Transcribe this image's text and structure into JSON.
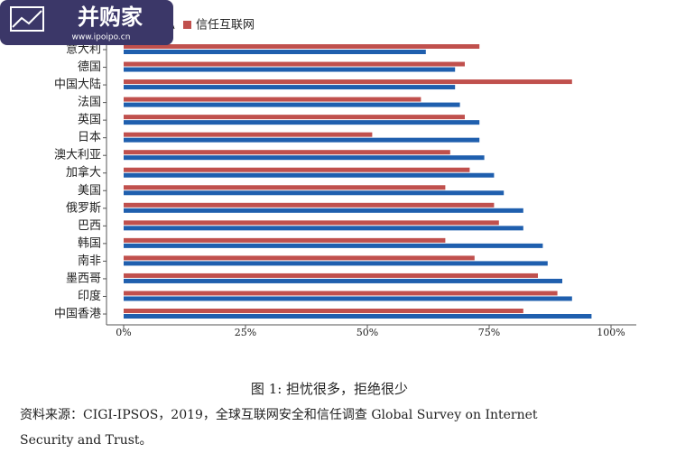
{
  "watermark": {
    "title": "并购家",
    "url": "www.ipoipo.cn"
  },
  "chart_data": {
    "type": "hbar",
    "categories": [
      "意大利",
      "德国",
      "中国大陆",
      "法国",
      "英国",
      "日本",
      "澳大利亚",
      "加拿大",
      "美国",
      "俄罗斯",
      "巴西",
      "韩国",
      "南非",
      "墨西哥",
      "印度",
      "中国香港"
    ],
    "series": [
      {
        "name": "担心隐私",
        "color": "#1f5fae",
        "values": [
          62,
          68,
          68,
          69,
          73,
          73,
          74,
          76,
          78,
          82,
          82,
          86,
          87,
          90,
          92,
          96
        ]
      },
      {
        "name": "信任互联网",
        "color": "#c0504d",
        "values": [
          73,
          70,
          92,
          61,
          70,
          51,
          67,
          71,
          66,
          76,
          77,
          66,
          72,
          85,
          89,
          82
        ]
      }
    ],
    "xlim": [
      0,
      100
    ],
    "xticks": [
      {
        "value": 0,
        "label": "0%"
      },
      {
        "value": 25,
        "label": "25%"
      },
      {
        "value": 50,
        "label": "50%"
      },
      {
        "value": 75,
        "label": "75%"
      },
      {
        "value": 100,
        "label": "100%"
      }
    ]
  },
  "caption": "图 1: 担忧很多，拒绝很少",
  "source": [
    "资料来源：CIGI-IPSOS，2019，全球互联网安全和信任调查 Global Survey on Internet",
    "Security and Trust。"
  ]
}
